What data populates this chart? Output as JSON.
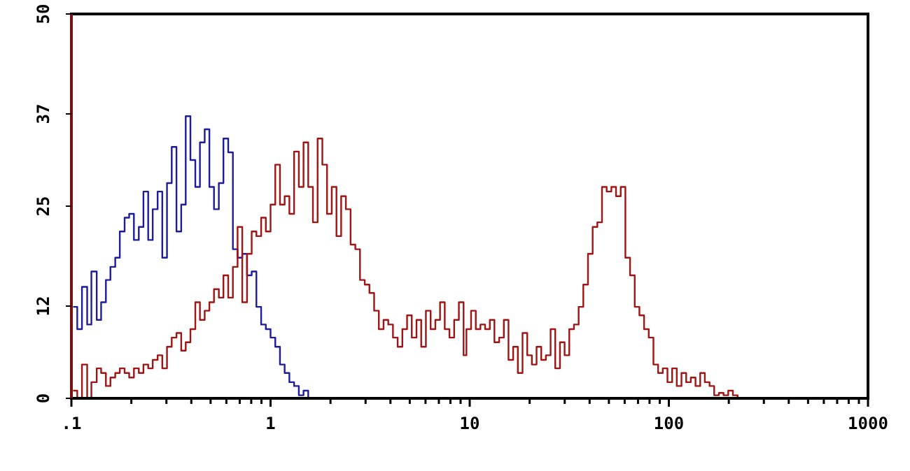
{
  "chart_data": {
    "type": "step",
    "log": "x",
    "xlim": [
      0.1,
      1000
    ],
    "ylim": [
      0,
      50
    ],
    "grid": false,
    "xticks": [
      {
        "value": 0.1,
        "label": ".1"
      },
      {
        "value": 0.2,
        "label": null
      },
      {
        "value": 0.3,
        "label": null
      },
      {
        "value": 0.4,
        "label": null
      },
      {
        "value": 0.5,
        "label": null
      },
      {
        "value": 0.6,
        "label": null
      },
      {
        "value": 0.7,
        "label": null
      },
      {
        "value": 0.8,
        "label": null
      },
      {
        "value": 0.9,
        "label": null
      },
      1,
      {
        "value": 2,
        "label": null
      },
      {
        "value": 3,
        "label": null
      },
      {
        "value": 4,
        "label": null
      },
      {
        "value": 5,
        "label": null
      },
      {
        "value": 6,
        "label": null
      },
      {
        "value": 7,
        "label": null
      },
      {
        "value": 8,
        "label": null
      },
      {
        "value": 9,
        "label": null
      },
      10,
      {
        "value": 20,
        "label": null
      },
      {
        "value": 30,
        "label": null
      },
      {
        "value": 40,
        "label": null
      },
      {
        "value": 50,
        "label": null
      },
      {
        "value": 60,
        "label": null
      },
      {
        "value": 70,
        "label": null
      },
      {
        "value": 80,
        "label": null
      },
      {
        "value": 90,
        "label": null
      },
      100,
      {
        "value": 200,
        "label": null
      },
      {
        "value": 300,
        "label": null
      },
      {
        "value": 400,
        "label": null
      },
      {
        "value": 500,
        "label": null
      },
      {
        "value": 600,
        "label": null
      },
      {
        "value": 700,
        "label": null
      },
      {
        "value": 800,
        "label": null
      },
      {
        "value": 900,
        "label": null
      },
      1000
    ],
    "yticks": [
      0,
      12,
      25,
      37,
      50
    ],
    "series": [
      {
        "color": "#1c1c9c",
        "x": [
          0.102,
          0.107,
          0.113,
          0.12,
          0.126,
          0.134,
          0.141,
          0.149,
          0.157,
          0.166,
          0.175,
          0.185,
          0.195,
          0.206,
          0.218,
          0.23,
          0.243,
          0.256,
          0.271,
          0.286,
          0.302,
          0.319,
          0.337,
          0.356,
          0.375,
          0.396,
          0.419,
          0.442,
          0.467,
          0.493,
          0.52,
          0.55,
          0.58,
          0.613,
          0.647,
          0.683,
          0.721,
          0.762,
          0.804,
          0.849,
          0.897,
          0.947,
          1,
          1.056,
          1.115,
          1.177,
          1.243,
          1.313,
          1.387,
          1.464,
          1.546,
          169
        ],
        "values": [
          11.9,
          9,
          14.5,
          9.6,
          16.5,
          10.2,
          12.5,
          15.4,
          17.1,
          18.3,
          21.7,
          23.5,
          24,
          20.6,
          22.3,
          26.9,
          20.6,
          24.6,
          26.9,
          18.3,
          28,
          32.7,
          21.7,
          25.2,
          36.7,
          31,
          27.5,
          33.3,
          35,
          27.5,
          24.6,
          28,
          33.8,
          32,
          19.4,
          18.3,
          18.8,
          16,
          16.5,
          11.9,
          9.6,
          9,
          7.9,
          6.7,
          4.4,
          3.3,
          2.1,
          1.6,
          0.4,
          1,
          0,
          0
        ]
      },
      {
        "color": "#a01414",
        "x": [
          0.102,
          0.107,
          0.113,
          0.12,
          0.126,
          0.134,
          0.141,
          0.149,
          0.157,
          0.166,
          0.175,
          0.185,
          0.195,
          0.206,
          0.218,
          0.23,
          0.243,
          0.256,
          0.271,
          0.286,
          0.302,
          0.319,
          0.337,
          0.356,
          0.375,
          0.396,
          0.419,
          0.442,
          0.467,
          0.493,
          0.52,
          0.55,
          0.58,
          0.613,
          0.647,
          0.683,
          0.721,
          0.762,
          0.804,
          0.849,
          0.897,
          0.947,
          1,
          1.056,
          1.115,
          1.177,
          1.243,
          1.313,
          1.387,
          1.464,
          1.546,
          1.632,
          1.723,
          1.82,
          1.921,
          2.029,
          2.143,
          2.262,
          2.389,
          2.523,
          2.665,
          2.813,
          2.971,
          3.137,
          3.312,
          3.497,
          3.693,
          3.899,
          4.118,
          4.348,
          4.59,
          4.847,
          5.119,
          5.406,
          5.708,
          6.027,
          6.366,
          6.721,
          7.098,
          7.494,
          7.913,
          8.356,
          8.823,
          9.318,
          9.63,
          10.16,
          10.73,
          11.32,
          11.95,
          12.62,
          13.31,
          14.06,
          14.84,
          15.66,
          16.53,
          17.45,
          18.42,
          19.45,
          20.52,
          21.66,
          22.87,
          24.13,
          25.48,
          26.89,
          28.39,
          29.96,
          31.62,
          33.38,
          35.24,
          37.19,
          39.26,
          41.44,
          43.74,
          46.17,
          48.73,
          51.44,
          54.29,
          57.31,
          60.49,
          63.86,
          67.4,
          71.14,
          75.1,
          79.27,
          83.67,
          88.32,
          93.22,
          98.4,
          103.9,
          109.6,
          115.7,
          122.2,
          128.9,
          136.1,
          143.7,
          151.6,
          160.1,
          168.9,
          178.3,
          188.2,
          198.7,
          209.7,
          221.4,
          1000
        ],
        "values": [
          1,
          0,
          4.4,
          0,
          2.1,
          3.9,
          3.3,
          1.6,
          2.7,
          3.3,
          3.9,
          3.3,
          2.7,
          3.9,
          3.3,
          4.4,
          3.9,
          5,
          5.6,
          3.9,
          6.7,
          7.9,
          8.5,
          6.2,
          7.3,
          9,
          12.5,
          10.2,
          11.4,
          12.5,
          14.2,
          13.1,
          16,
          13.1,
          17.1,
          22.3,
          12.5,
          18.8,
          21.7,
          21.1,
          23.5,
          21.7,
          25.2,
          30.4,
          25.2,
          26.3,
          24,
          32.1,
          27.5,
          33.3,
          27.5,
          22.9,
          33.8,
          30.4,
          24,
          27.5,
          21.1,
          26.3,
          24.6,
          20,
          19.4,
          15.4,
          14.8,
          13.7,
          11.4,
          9,
          10.2,
          9.6,
          7.9,
          6.7,
          9,
          10.8,
          7.9,
          10.2,
          6.7,
          11.4,
          9,
          10.2,
          12.5,
          9,
          7.9,
          10.2,
          12.5,
          5.6,
          9,
          11.4,
          9,
          9.6,
          9,
          10.2,
          7.3,
          7.9,
          10.2,
          5,
          6.7,
          3.3,
          8.5,
          5.6,
          4.4,
          6.7,
          5,
          5.6,
          9,
          3.9,
          7.3,
          5.6,
          9,
          9.6,
          11.9,
          14.8,
          18.8,
          22.3,
          22.9,
          27.5,
          26.9,
          27.5,
          26.3,
          27.5,
          18.3,
          16,
          11.9,
          10.8,
          9,
          7.9,
          4.4,
          3.3,
          3.9,
          2.1,
          3.9,
          1.6,
          3.3,
          2.1,
          2.7,
          1.6,
          3.3,
          2.1,
          1.6,
          0.4,
          0.7,
          0.4,
          1,
          0.4,
          0,
          0
        ]
      }
    ]
  }
}
